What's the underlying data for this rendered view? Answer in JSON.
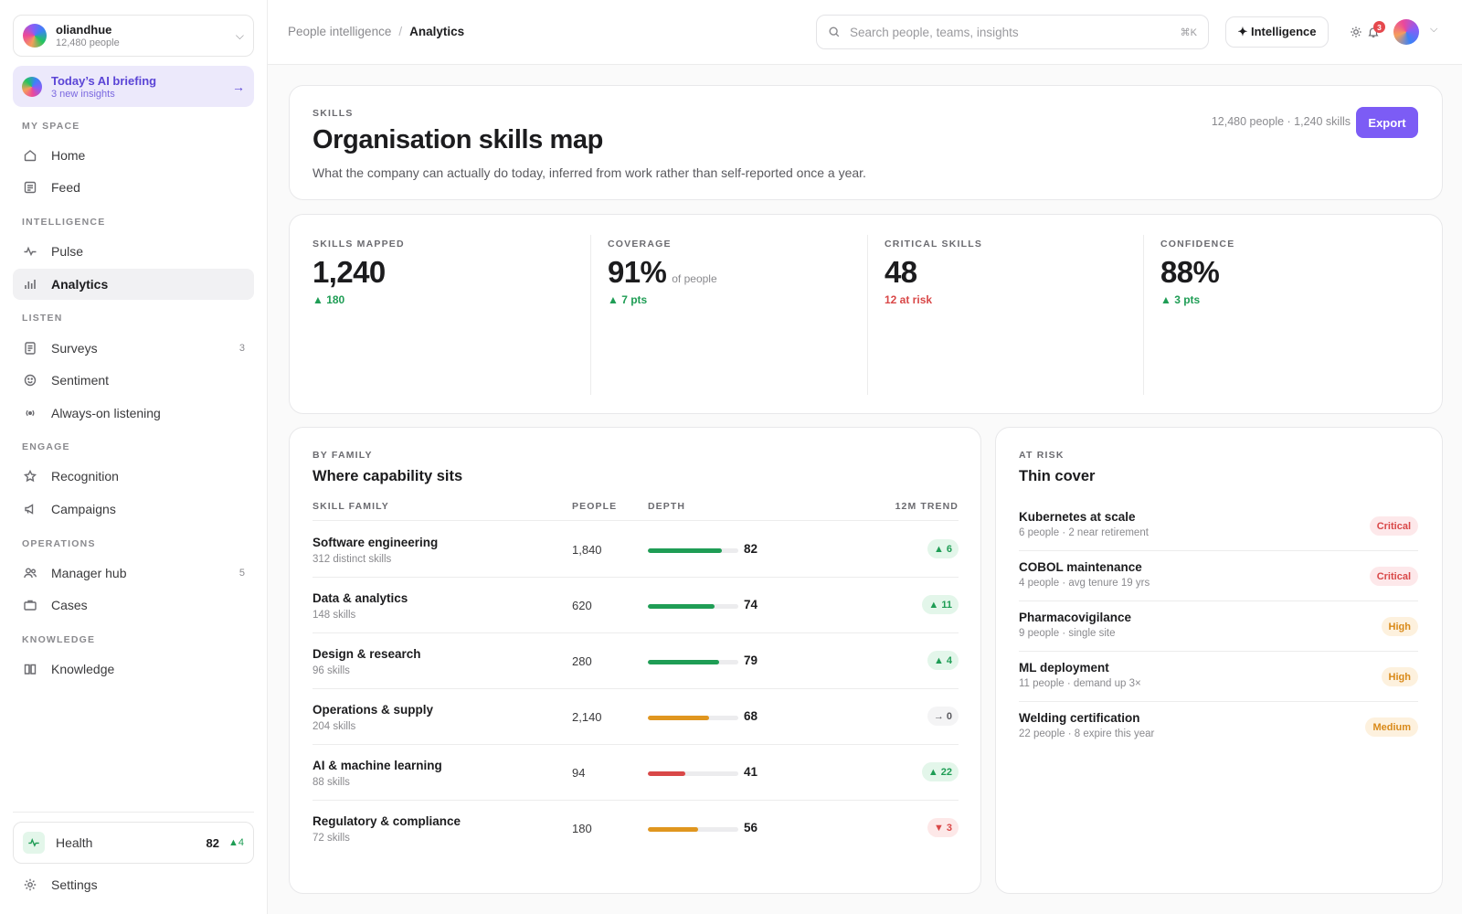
{
  "org": {
    "name": "oliandhue",
    "people": "12,480 people"
  },
  "briefing": {
    "title": "Today’s AI briefing",
    "subtitle": "3 new insights"
  },
  "nav": {
    "my_space": {
      "label": "MY SPACE",
      "items": [
        {
          "label": "Home",
          "icon": "home-icon"
        },
        {
          "label": "Feed",
          "icon": "feed-icon"
        }
      ]
    },
    "intelligence": {
      "label": "INTELLIGENCE",
      "items": [
        {
          "label": "Pulse",
          "icon": "pulse-icon"
        },
        {
          "label": "Analytics",
          "icon": "bar-chart-icon",
          "active": true
        }
      ]
    },
    "listen": {
      "label": "LISTEN",
      "items": [
        {
          "label": "Surveys",
          "icon": "survey-icon",
          "count": "3"
        },
        {
          "label": "Sentiment",
          "icon": "smile-icon"
        },
        {
          "label": "Always-on listening",
          "icon": "broadcast-icon"
        }
      ]
    },
    "engage": {
      "label": "ENGAGE",
      "items": [
        {
          "label": "Recognition",
          "icon": "star-icon"
        },
        {
          "label": "Campaigns",
          "icon": "megaphone-icon"
        }
      ]
    },
    "operations": {
      "label": "OPERATIONS",
      "items": [
        {
          "label": "Manager hub",
          "icon": "users-icon",
          "count": "5"
        },
        {
          "label": "Cases",
          "icon": "briefcase-icon"
        }
      ]
    },
    "knowledge": {
      "label": "KNOWLEDGE",
      "items": [
        {
          "label": "Knowledge",
          "icon": "book-icon"
        }
      ]
    }
  },
  "health": {
    "label": "Health",
    "score": "82",
    "delta": "▲4"
  },
  "settings": {
    "label": "Settings"
  },
  "breadcrumb": {
    "parent": "People intelligence",
    "separator": "/",
    "current": "Analytics"
  },
  "search": {
    "placeholder": "Search people, teams, insights",
    "shortcut": "⌘K"
  },
  "intelligence_button": "✦ Intelligence",
  "notifications": {
    "count": "3"
  },
  "header": {
    "eyebrow": "SKILLS",
    "title": "Organisation skills map",
    "description": "What the company can actually do today, inferred from work rather than self-reported once a year.",
    "stats": "12,480 people · 1,240 skills",
    "export_label": "Export"
  },
  "kpis": [
    {
      "label": "SKILLS MAPPED",
      "value": "1,240",
      "suffix": "",
      "delta": "▲ 180",
      "status": "good"
    },
    {
      "label": "COVERAGE",
      "value": "91%",
      "suffix": "of people",
      "delta": "▲ 7 pts",
      "status": "good"
    },
    {
      "label": "CRITICAL SKILLS",
      "value": "48",
      "suffix": "",
      "delta": "12 at risk",
      "status": "bad"
    },
    {
      "label": "CONFIDENCE",
      "value": "88%",
      "suffix": "",
      "delta": "▲ 3 pts",
      "status": "good"
    }
  ],
  "families": {
    "eyebrow": "BY FAMILY",
    "title": "Where capability sits",
    "columns": {
      "family": "SKILL FAMILY",
      "people": "PEOPLE",
      "depth": "DEPTH",
      "trend": "12M TREND"
    },
    "rows": [
      {
        "name": "Software engineering",
        "sub": "312 distinct skills",
        "people": "1,840",
        "depth": 82,
        "trend": "▲ 6",
        "direction": "up",
        "color": "#1f9d55"
      },
      {
        "name": "Data & analytics",
        "sub": "148 skills",
        "people": "620",
        "depth": 74,
        "trend": "▲ 11",
        "direction": "up",
        "color": "#1f9d55"
      },
      {
        "name": "Design & research",
        "sub": "96 skills",
        "people": "280",
        "depth": 79,
        "trend": "▲ 4",
        "direction": "up",
        "color": "#1f9d55"
      },
      {
        "name": "Operations & supply",
        "sub": "204 skills",
        "people": "2,140",
        "depth": 68,
        "trend": "→ 0",
        "direction": "flat",
        "color": "#e0961f"
      },
      {
        "name": "AI & machine learning",
        "sub": "88 skills",
        "people": "94",
        "depth": 41,
        "trend": "▲ 22",
        "direction": "up",
        "color": "#d94848"
      },
      {
        "name": "Regulatory & compliance",
        "sub": "72 skills",
        "people": "180",
        "depth": 56,
        "trend": "▼ 3",
        "direction": "down",
        "color": "#e0961f"
      }
    ]
  },
  "risk": {
    "eyebrow": "AT RISK",
    "title": "Thin cover",
    "items": [
      {
        "name": "Kubernetes at scale",
        "sub": "6 people · 2 near retirement",
        "level": "Critical"
      },
      {
        "name": "COBOL maintenance",
        "sub": "4 people · avg tenure 19 yrs",
        "level": "Critical"
      },
      {
        "name": "Pharmacovigilance",
        "sub": "9 people · single site",
        "level": "High"
      },
      {
        "name": "ML deployment",
        "sub": "11 people · demand up 3×",
        "level": "High"
      },
      {
        "name": "Welding certification",
        "sub": "22 people · 8 expire this year",
        "level": "Medium"
      }
    ]
  }
}
